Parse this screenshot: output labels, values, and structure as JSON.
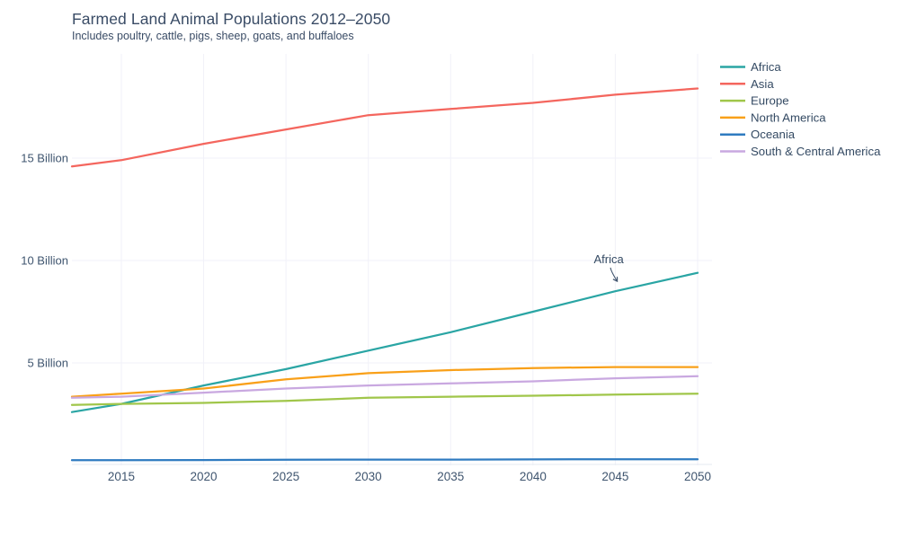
{
  "header": {
    "title": "Farmed Land Animal Populations 2012–2050",
    "subtitle": "Includes poultry, cattle, pigs, sheep, goats, and buffaloes"
  },
  "colors": {
    "title_text": "#3a4c66",
    "axis_text": "#3f556f",
    "gridline": "#f1f1f8",
    "baseline": "#e4e9f2",
    "annotation_arrow": "#42566f"
  },
  "chart_data": {
    "type": "line",
    "title": "Farmed Land Animal Populations 2012–2050",
    "subtitle": "Includes poultry, cattle, pigs, sheep, goats, and buffaloes",
    "x": [
      2012,
      2015,
      2020,
      2025,
      2030,
      2035,
      2040,
      2045,
      2050
    ],
    "xlim": [
      2012,
      2050
    ],
    "ylim": [
      0,
      20.09
    ],
    "x_ticks": [
      2015,
      2020,
      2025,
      2030,
      2035,
      2040,
      2045,
      2050
    ],
    "x_tick_labels": [
      "2015",
      "2020",
      "2025",
      "2030",
      "2035",
      "2040",
      "2045",
      "2050"
    ],
    "y_ticks": [
      5,
      10,
      15
    ],
    "y_tick_labels": [
      "5 Billion",
      "10 Billion",
      "15 Billion"
    ],
    "grid": true,
    "legend_position": "right",
    "units": "billions of animals",
    "series": [
      {
        "name": "Africa",
        "color": "#2aa5a4",
        "values": [
          2.6,
          3.0,
          3.9,
          4.7,
          5.6,
          6.5,
          7.5,
          8.5,
          9.4
        ]
      },
      {
        "name": "Asia",
        "color": "#f4665e",
        "values": [
          14.6,
          14.9,
          15.7,
          16.4,
          17.1,
          17.4,
          17.7,
          18.1,
          18.4
        ]
      },
      {
        "name": "Europe",
        "color": "#a0c64a",
        "values": [
          2.95,
          3.0,
          3.05,
          3.15,
          3.3,
          3.35,
          3.4,
          3.45,
          3.5
        ]
      },
      {
        "name": "North America",
        "color": "#f9a019",
        "values": [
          3.35,
          3.5,
          3.75,
          4.2,
          4.5,
          4.65,
          4.75,
          4.8,
          4.8
        ]
      },
      {
        "name": "Oceania",
        "color": "#2f7bc0",
        "values": [
          0.25,
          0.25,
          0.26,
          0.27,
          0.28,
          0.28,
          0.29,
          0.3,
          0.3
        ]
      },
      {
        "name": "South & Central America",
        "color": "#c9a8e0",
        "values": [
          3.3,
          3.35,
          3.55,
          3.75,
          3.9,
          4.0,
          4.1,
          4.25,
          4.35
        ]
      }
    ],
    "annotation": {
      "text": "Africa",
      "label_x": 2044.6,
      "label_y": 10.05,
      "arrow_to_x": 2045.2,
      "arrow_to_y": 8.9
    }
  }
}
